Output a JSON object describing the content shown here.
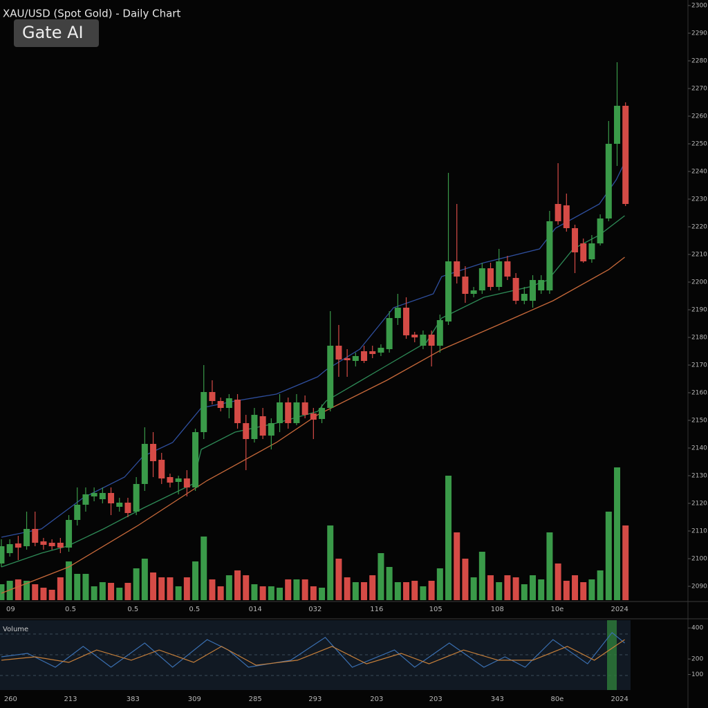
{
  "chart_data": [
    {
      "type": "candlestick",
      "title": "XAU/USD (Spot Gold) - Daily Chart",
      "watermark": "Gate AI",
      "x": [
        0,
        1,
        2,
        3,
        4,
        5,
        6,
        7,
        8,
        9,
        10,
        11,
        12,
        13,
        14,
        15,
        16,
        17,
        18,
        19,
        20,
        21,
        22,
        23,
        24,
        25,
        26,
        27,
        28,
        29,
        30,
        31,
        32,
        33,
        34,
        35,
        36,
        37,
        38,
        39,
        40,
        41,
        42,
        43,
        44,
        45,
        46,
        47,
        48,
        49,
        50,
        51,
        52,
        53,
        54,
        55,
        56,
        57,
        58,
        59,
        60,
        61,
        62,
        63,
        64,
        65,
        66,
        67,
        68,
        69,
        70,
        71,
        72,
        73,
        74
      ],
      "open": [
        2098.25,
        2102,
        2105.5,
        2104.5,
        2110.75,
        2106.25,
        2105.75,
        2105.75,
        2104,
        2114,
        2119.5,
        2122.5,
        2121.5,
        2123.75,
        2118.75,
        2120.25,
        2117,
        2127,
        2141.5,
        2135.75,
        2129.5,
        2127.75,
        2129,
        2125.75,
        2145.75,
        2160.25,
        2157,
        2154.5,
        2157.5,
        2149,
        2143.25,
        2151.5,
        2144.5,
        2149,
        2156.5,
        2149,
        2156.5,
        2152.5,
        2150.5,
        2154.5,
        2177,
        2172.5,
        2171.5,
        2175,
        2175,
        2174.5,
        2175.75,
        2187,
        2190.75,
        2181,
        2177,
        2181,
        2177,
        2185.75,
        2207.5,
        2202,
        2195.75,
        2197,
        2205,
        2198.25,
        2207.5,
        2201.5,
        2193.25,
        2193.25,
        2197,
        2197,
        2228.25,
        2227.75,
        2219.5,
        2214,
        2208.25,
        2214,
        2223,
        2250,
        2263.75
      ],
      "high": [
        2107,
        2107,
        2108.25,
        2117,
        2117,
        2107.5,
        2107,
        2107.5,
        2115.75,
        2125.75,
        2125.75,
        2125.75,
        2125.75,
        2125.75,
        2122,
        2122,
        2129.5,
        2147.5,
        2145.75,
        2138.25,
        2130.75,
        2130,
        2132,
        2147,
        2170,
        2164.5,
        2158.25,
        2159.5,
        2159.5,
        2152,
        2154.5,
        2154.5,
        2150.75,
        2159.5,
        2158.25,
        2159.5,
        2159,
        2154.5,
        2155.75,
        2189.5,
        2184.5,
        2175.75,
        2174.5,
        2177,
        2177,
        2177.5,
        2189.5,
        2195.75,
        2194.5,
        2182,
        2182.5,
        2182.5,
        2188.25,
        2239.5,
        2228.25,
        2205.75,
        2198.25,
        2207,
        2207,
        2212,
        2209.5,
        2203.25,
        2198.25,
        2202.5,
        2202.5,
        2225.75,
        2243,
        2232,
        2220.75,
        2215.75,
        2217,
        2224.5,
        2258.25,
        2279.5,
        2265
      ],
      "low": [
        2097,
        2100.75,
        2099.5,
        2103.25,
        2104.5,
        2103.25,
        2103.25,
        2102,
        2102.5,
        2112,
        2117,
        2120.75,
        2120,
        2115.75,
        2117,
        2115,
        2115.75,
        2124.5,
        2129.5,
        2127,
        2125.75,
        2123.25,
        2122.5,
        2124.5,
        2143.25,
        2155.75,
        2153.25,
        2150.75,
        2147,
        2132,
        2142,
        2143.25,
        2139.5,
        2145.75,
        2147,
        2148.25,
        2150.75,
        2143.25,
        2149,
        2153.25,
        2165.75,
        2165.75,
        2169.5,
        2170.75,
        2172.5,
        2173.25,
        2174.5,
        2184.5,
        2179.5,
        2178.25,
        2175.75,
        2169.5,
        2174.5,
        2184.5,
        2199.5,
        2192.5,
        2194.5,
        2195.75,
        2197,
        2197,
        2200.75,
        2192,
        2192,
        2190.75,
        2195.75,
        2195.75,
        2220.75,
        2218.25,
        2203.25,
        2207,
        2207,
        2213.25,
        2222,
        2242,
        2227.5
      ],
      "close": [
        2104.5,
        2105.25,
        2104,
        2110.75,
        2105.75,
        2105,
        2104.5,
        2104,
        2114,
        2119.5,
        2123.25,
        2123.75,
        2123.75,
        2120,
        2120.25,
        2116.5,
        2127,
        2141.5,
        2135.25,
        2129,
        2127.5,
        2129,
        2125.75,
        2145.75,
        2160.25,
        2157,
        2154.5,
        2158,
        2149,
        2143.25,
        2152,
        2144.5,
        2149,
        2156.5,
        2149,
        2156.5,
        2152,
        2150.25,
        2154.5,
        2177,
        2172,
        2171.75,
        2173.25,
        2171.5,
        2174,
        2176.25,
        2187,
        2190.75,
        2180.75,
        2180,
        2181,
        2177,
        2186.25,
        2207.5,
        2202,
        2195.75,
        2197,
        2205,
        2198.25,
        2207.5,
        2202,
        2193.25,
        2195.75,
        2200.75,
        2200.75,
        2222,
        2222,
        2219.5,
        2210.75,
        2207.5,
        2214,
        2223,
        2250,
        2263.75,
        2228.25
      ],
      "volume": [
        23,
        28,
        30,
        28,
        23,
        18,
        15,
        33,
        56,
        38,
        38,
        20,
        26,
        25,
        18,
        25,
        46,
        60,
        40,
        33,
        33,
        20,
        33,
        56,
        92,
        30,
        20,
        36,
        43,
        36,
        23,
        20,
        20,
        18,
        30,
        30,
        30,
        20,
        18,
        108,
        60,
        33,
        26,
        26,
        36,
        68,
        48,
        26,
        26,
        28,
        20,
        28,
        46,
        180,
        98,
        60,
        33,
        70,
        36,
        26,
        36,
        33,
        23,
        36,
        30,
        98,
        53,
        28,
        36,
        26,
        30,
        43,
        128,
        192,
        108
      ],
      "up_color": "#3a9a49",
      "down_color": "#d54b46",
      "lines": [
        {
          "color": "#2f4f9e",
          "x": [
            0,
            4.75,
            9.7,
            14.6,
            16.8,
            20.3,
            23.7,
            27.7,
            32.6,
            37.5,
            38.5,
            42.5,
            46.5,
            51.2,
            52.2,
            57.2,
            63.8,
            65.7,
            70.9,
            72.9,
            73.9
          ],
          "values": [
            2107.75,
            2110.75,
            2122,
            2129.5,
            2137,
            2142,
            2154.5,
            2157,
            2159.5,
            2165.75,
            2168.25,
            2175.75,
            2190.75,
            2195.75,
            2202,
            2207,
            2212,
            2219.5,
            2228.25,
            2237,
            2243.25
          ]
        },
        {
          "color": "#2e8b57",
          "x": [
            0,
            4.75,
            7.8,
            12.1,
            16.8,
            22.7,
            23.7,
            27.7,
            32.6,
            37.5,
            38.5,
            45.5,
            50.4,
            52.2,
            57.2,
            62.6,
            64.8,
            67.8,
            70.9,
            73.9
          ],
          "values": [
            2097,
            2102,
            2104.5,
            2110.75,
            2118.25,
            2127,
            2139.5,
            2145.75,
            2149,
            2153.25,
            2157,
            2169.5,
            2178.25,
            2187,
            2194.5,
            2198.25,
            2200.75,
            2212,
            2217,
            2224
          ]
        },
        {
          "color": "#c8693a",
          "x": [
            0,
            8,
            16.2,
            24.4,
            32.6,
            37.5,
            45.7,
            52.3,
            58.9,
            65.4,
            72,
            73.9
          ],
          "values": [
            2087.5,
            2097,
            2112,
            2128.25,
            2142,
            2152,
            2164.5,
            2175.75,
            2184.5,
            2193.25,
            2204.5,
            2209
          ]
        }
      ],
      "xlim": [
        -0.16,
        81.4
      ],
      "ylim": [
        2084.5,
        2302
      ],
      "y2lim": [
        0,
        200
      ],
      "yticks": [
        2300,
        {
          "value": 2290,
          "label": "2290.00"
        },
        {
          "value": 2280,
          "label": "2280.00"
        },
        {
          "value": 2270,
          "label": "2270.00"
        },
        {
          "value": 2260,
          "label": "2260.00"
        },
        {
          "value": 2250,
          "label": "2250.00"
        },
        {
          "value": 2240,
          "label": "2240.00"
        },
        {
          "value": 2230,
          "label": "2230.00"
        },
        {
          "value": 2220,
          "label": "2220.00"
        },
        {
          "value": 2210,
          "label": "2210.00"
        },
        {
          "value": 2200,
          "label": "2200.00"
        },
        {
          "value": 2190,
          "label": "2190.00"
        },
        {
          "value": 2180,
          "label": "2180.00"
        },
        {
          "value": 2170,
          "label": "2170.00"
        },
        {
          "value": 2160,
          "label": "2160.00"
        },
        {
          "value": 2150,
          "label": "2150.00"
        },
        {
          "value": 2140,
          "label": "2140.00"
        },
        {
          "value": 2130,
          "label": "2130.00"
        },
        {
          "value": 2120,
          "label": "2120.00"
        },
        {
          "value": 2110,
          "label": "2110.00"
        },
        {
          "value": 2100,
          "label": "2100.00"
        },
        {
          "value": 2090,
          "label": "2090.00"
        }
      ],
      "xticks": [
        {
          "value": 1.1,
          "label": "09"
        },
        {
          "value": 8.2,
          "label": "0.5"
        },
        {
          "value": 15.6,
          "label": "0.5"
        },
        {
          "value": 22.9,
          "label": "0.5"
        },
        {
          "value": 30.1,
          "label": "014"
        },
        {
          "value": 37.2,
          "label": "032"
        },
        {
          "value": 44.5,
          "label": "116"
        },
        {
          "value": 51.5,
          "label": "105"
        },
        {
          "value": 58.8,
          "label": "108"
        },
        {
          "value": 65.9,
          "label": "10e"
        },
        {
          "value": 73.3,
          "label": "2024"
        }
      ]
    },
    {
      "type": "line",
      "title": "Volume",
      "series": [
        {
          "color": "#3a6fb0",
          "x": [
            0,
            3.1,
            6.4,
            9.7,
            13,
            17,
            20.3,
            24.4,
            26.9,
            29.3,
            34.3,
            38.4,
            41.6,
            46.6,
            49,
            53.1,
            57.2,
            59.7,
            62.1,
            65.4,
            69.5,
            72.4,
            73.9
          ],
          "values": [
            214,
            236,
            147,
            281,
            147,
            303,
            147,
            325,
            258,
            147,
            192,
            339,
            147,
            258,
            147,
            303,
            147,
            214,
            147,
            325,
            169,
            370,
            303
          ]
        },
        {
          "color": "#c8803a",
          "x": [
            0,
            4,
            8,
            11.3,
            15.4,
            18.7,
            22.8,
            26.1,
            30.2,
            35.1,
            39.2,
            43.3,
            47.4,
            50.7,
            54.8,
            58.9,
            63,
            67.1,
            70.3,
            73.9
          ],
          "values": [
            192,
            214,
            178,
            258,
            192,
            258,
            178,
            281,
            160,
            192,
            281,
            169,
            236,
            169,
            258,
            192,
            192,
            281,
            192,
            325
          ]
        }
      ],
      "xlim": [
        -0.16,
        81.4
      ],
      "ylim": [
        0,
        450
      ],
      "yticks": [
        400,
        200,
        100
      ],
      "xticks": [
        {
          "value": 1.1,
          "label": "260"
        },
        {
          "value": 8.2,
          "label": "213"
        },
        {
          "value": 15.6,
          "label": "383"
        },
        {
          "value": 22.9,
          "label": "309"
        },
        {
          "value": 30.1,
          "label": "285"
        },
        {
          "value": 37.2,
          "label": "293"
        },
        {
          "value": 44.5,
          "label": "203"
        },
        {
          "value": 51.5,
          "label": "203"
        },
        {
          "value": 58.8,
          "label": "343"
        },
        {
          "value": 65.9,
          "label": "80e"
        },
        {
          "value": 73.3,
          "label": "2024"
        }
      ]
    }
  ]
}
